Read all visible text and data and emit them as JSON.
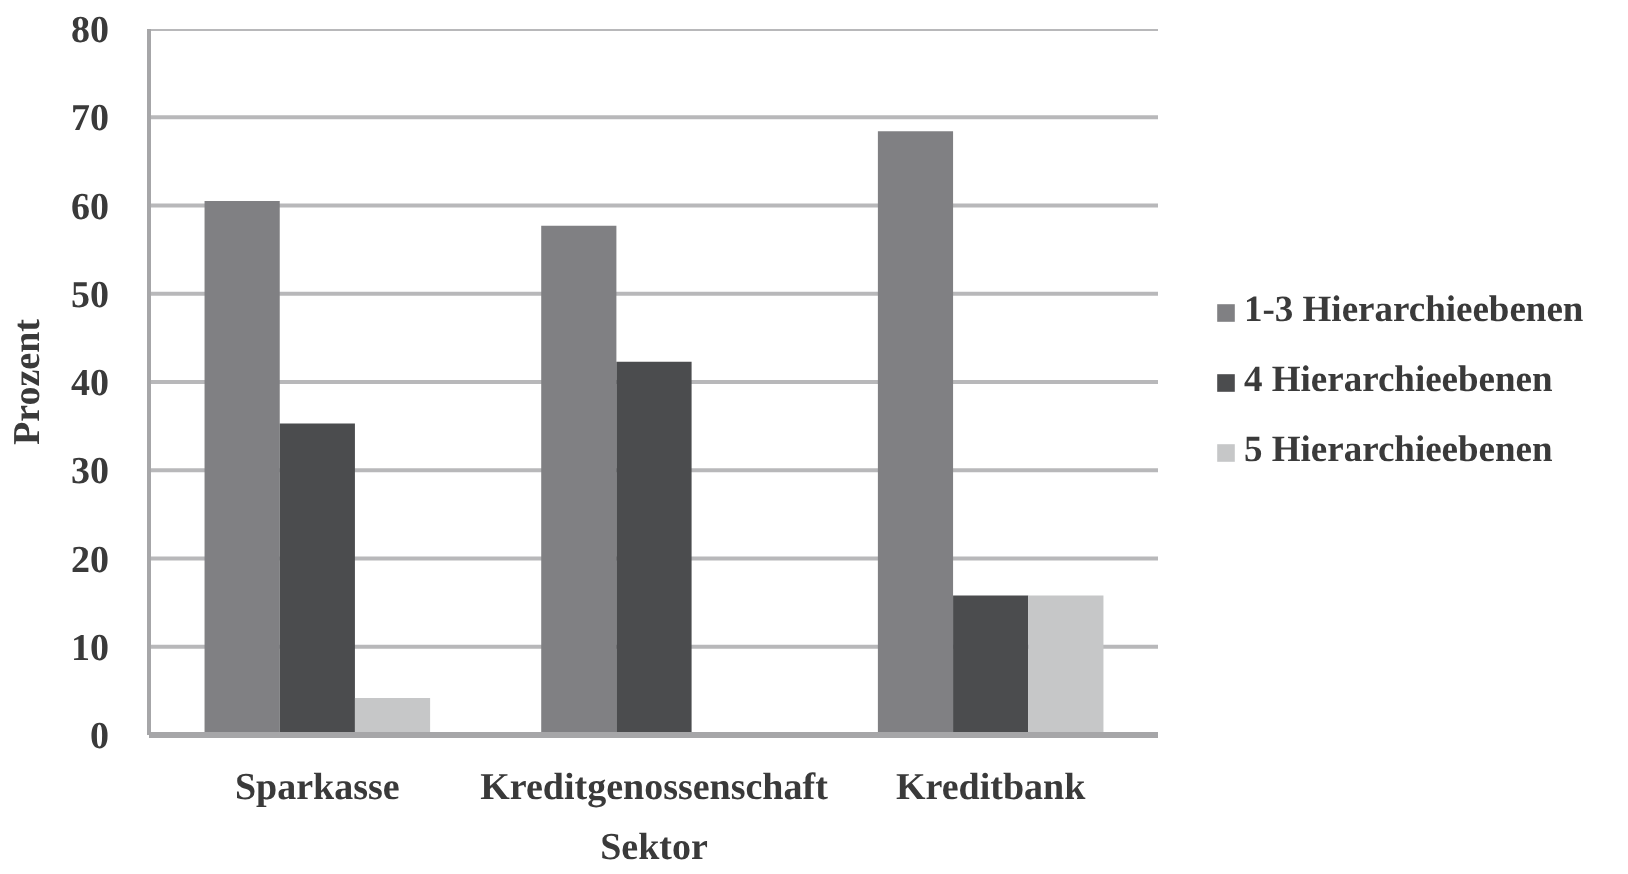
{
  "chart_data": {
    "type": "bar",
    "categories": [
      "Sparkasse",
      "Kreditgenossenschaft",
      "Kreditbank"
    ],
    "xlabel": "Sektor",
    "ylabel": "Prozent",
    "ylim": [
      0,
      80
    ],
    "yticks": [
      0,
      10,
      20,
      30,
      40,
      50,
      60,
      70,
      80
    ],
    "grid": "y",
    "legend": "right",
    "series": [
      {
        "name": "1-3 Hierarchieebenen",
        "color": "#808083",
        "values": [
          60.5,
          57.7,
          68.4
        ]
      },
      {
        "name": "4 Hierarchieebenen",
        "color": "#4b4c4e",
        "values": [
          35.3,
          42.3,
          15.8
        ]
      },
      {
        "name": "5 Hierarchieebenen",
        "color": "#c6c7c8",
        "values": [
          4.2,
          0,
          15.8
        ]
      }
    ]
  }
}
